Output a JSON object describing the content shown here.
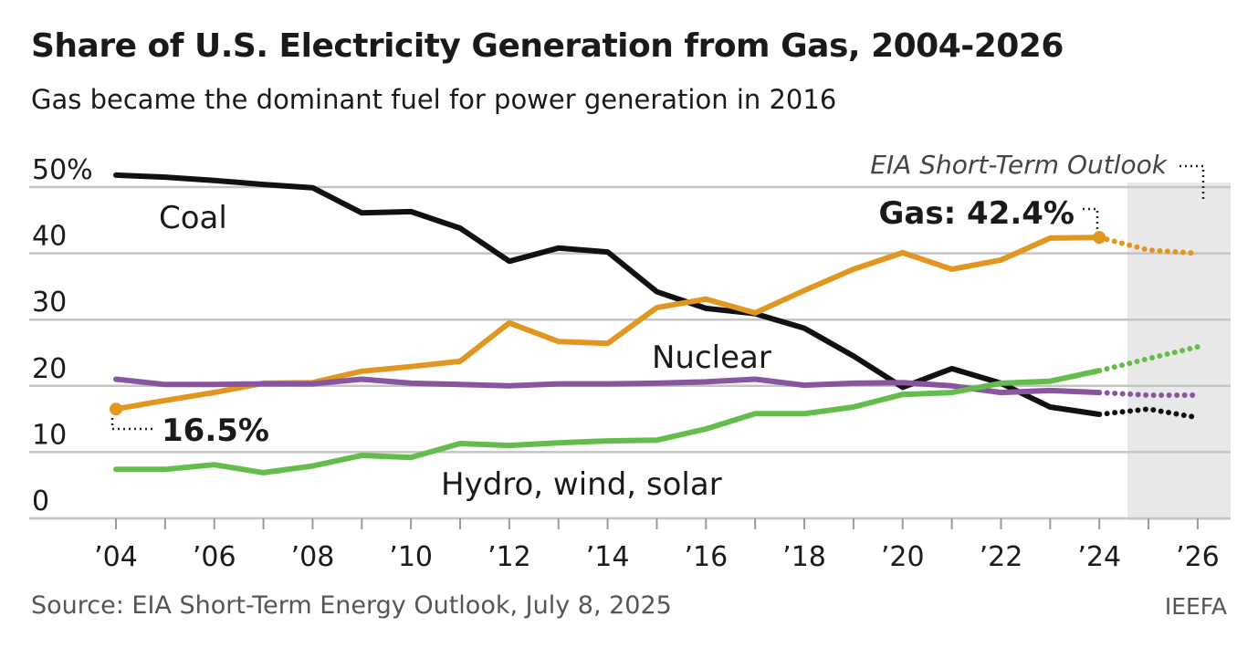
{
  "chart_data": {
    "type": "line",
    "title": "Share of U.S. Electricity Generation from Gas, 2004-2026",
    "subtitle": "Gas became the dominant fuel for power generation in 2016",
    "xlabel": "",
    "ylabel": "",
    "ylim": [
      0,
      50
    ],
    "yticks": [
      "0",
      "10",
      "20",
      "30",
      "40",
      "50%"
    ],
    "ytick_values": [
      0,
      10,
      20,
      30,
      40,
      50
    ],
    "x": [
      2004,
      2005,
      2006,
      2007,
      2008,
      2009,
      2010,
      2011,
      2012,
      2013,
      2014,
      2015,
      2016,
      2017,
      2018,
      2019,
      2020,
      2021,
      2022,
      2023,
      2024,
      2025,
      2026
    ],
    "xtick_labels": [
      "’04",
      "’06",
      "’08",
      "’10",
      "’12",
      "’14",
      "’16",
      "’18",
      "’20",
      "’22",
      "’24",
      "’26"
    ],
    "xtick_values": [
      2004,
      2006,
      2008,
      2010,
      2012,
      2014,
      2016,
      2018,
      2020,
      2022,
      2024,
      2026
    ],
    "forecast_start": 2024,
    "forecast_label": "EIA Short-Term Outlook",
    "grid": true,
    "series": [
      {
        "name": "Coal",
        "color": "#111111",
        "values": [
          51.8,
          51.5,
          51.0,
          50.4,
          49.9,
          46.1,
          46.3,
          43.8,
          38.8,
          40.8,
          40.2,
          34.2,
          31.7,
          30.9,
          28.7,
          24.5,
          19.8,
          22.6,
          20.4,
          16.8,
          15.7,
          16.5,
          15.2
        ]
      },
      {
        "name": "Gas",
        "color": "#e0961f",
        "values": [
          16.5,
          17.8,
          19.0,
          20.4,
          20.5,
          22.2,
          22.9,
          23.7,
          29.5,
          26.7,
          26.4,
          31.8,
          33.1,
          31.0,
          34.4,
          37.6,
          40.1,
          37.6,
          39.0,
          42.3,
          42.4,
          40.5,
          40.0
        ]
      },
      {
        "name": "Nuclear",
        "color": "#8a55a0",
        "values": [
          21.0,
          20.2,
          20.2,
          20.3,
          20.3,
          21.0,
          20.4,
          20.2,
          20.0,
          20.3,
          20.3,
          20.4,
          20.6,
          21.0,
          20.1,
          20.4,
          20.5,
          20.0,
          19.0,
          19.3,
          19.0,
          18.6,
          18.6
        ]
      },
      {
        "name": "Hydro, wind, solar",
        "color": "#64bd4a",
        "values": [
          7.4,
          7.4,
          8.1,
          6.9,
          7.9,
          9.5,
          9.2,
          11.3,
          11.0,
          11.4,
          11.7,
          11.8,
          13.5,
          15.8,
          15.8,
          16.8,
          18.7,
          19.0,
          20.4,
          20.7,
          22.3,
          24.1,
          25.9
        ]
      }
    ],
    "annotations": {
      "gas_start": "16.5%",
      "gas_end": "Gas: 42.4%"
    }
  },
  "footer": {
    "source": "Source: EIA Short-Term Energy Outlook, July 8, 2025",
    "brand": "IEEFA"
  }
}
